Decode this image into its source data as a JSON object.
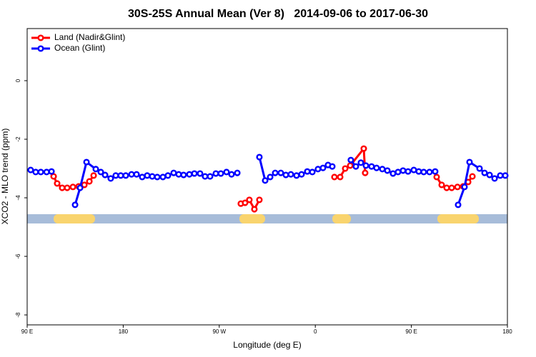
{
  "chart_data": {
    "type": "line",
    "title": "30S-25S Annual Mean (Ver 8)   2014-09-06 to 2017-06-30",
    "x_label": "Longitude (deg E)",
    "y_label": "XCO2 - MLO trend (ppm)",
    "xlim": [
      90,
      540
    ],
    "xticks": [
      {
        "value": 90,
        "label": "90 E"
      },
      180,
      {
        "value": 270,
        "label": "90 W"
      },
      {
        "value": 360,
        "label": "0"
      },
      {
        "value": 450,
        "label": "90 E"
      },
      {
        "value": 540,
        "label": "180"
      }
    ],
    "ylim": [
      -8.34,
      1.78
    ],
    "yticks": [
      0,
      -2,
      -4,
      -6,
      -8
    ],
    "legend": "top-left",
    "series": [
      {
        "name": "Land (Nadir&Glint)",
        "color": "#ff0000",
        "x": [
          114.8,
          118.1,
          122.8,
          127.5,
          132.9,
          138.2,
          143.6,
          148.3,
          152.3,
          null,
          290.2,
          294.2,
          298.2,
          302.9,
          307.6,
          null,
          377.9,
          383.3,
          388,
          392.7,
          405.4,
          406.7,
          null,
          473.7,
          478.4,
          483.1,
          487.8,
          493.2,
          498.5,
          503.2,
          507.2
        ],
        "values": [
          -3.27,
          -3.51,
          -3.66,
          -3.66,
          -3.63,
          -3.61,
          -3.56,
          -3.44,
          -3.24,
          null,
          -4.2,
          -4.17,
          -4.07,
          -4.39,
          -4.07,
          null,
          -3.29,
          -3.29,
          -3.0,
          -2.9,
          -2.32,
          -3.15,
          null,
          -3.29,
          -3.56,
          -3.66,
          -3.66,
          -3.63,
          -3.61,
          -3.46,
          -3.27
        ]
      },
      {
        "name": "Ocean (Glint)",
        "color": "#0000ff",
        "x": [
          93.3,
          98,
          102.8,
          108.2,
          112.8,
          null,
          134.9,
          139.6,
          145.6,
          154.3,
          159,
          163,
          168.3,
          173,
          177.7,
          182.4,
          187.8,
          192.5,
          197.8,
          202.5,
          207.2,
          211.9,
          217.2,
          221.9,
          227.3,
          232,
          236.6,
          242,
          246.7,
          252,
          256.7,
          261.4,
          266.8,
          271.5,
          276.8,
          281.5,
          286.9,
          null,
          307.6,
          313,
          317.7,
          322.4,
          327.7,
          332.4,
          337.1,
          342.4,
          347.1,
          352.5,
          357.2,
          362.5,
          367.2,
          371.9,
          375.9,
          null,
          393.3,
          398,
          402.7,
          407.4,
          412.7,
          417.4,
          422.8,
          427.5,
          432.8,
          437.5,
          442.2,
          446.9,
          452.3,
          456.9,
          461.6,
          467,
          472.3,
          null,
          493.8,
          499.8,
          504.5,
          513.9,
          518.6,
          523.3,
          528,
          533.3,
          538
        ],
        "values": [
          -3.05,
          -3.12,
          -3.12,
          -3.12,
          -3.1,
          null,
          -4.24,
          -3.66,
          -2.78,
          -3.02,
          -3.12,
          -3.22,
          -3.34,
          -3.24,
          -3.24,
          -3.24,
          -3.2,
          -3.2,
          -3.29,
          -3.24,
          -3.27,
          -3.29,
          -3.29,
          -3.24,
          -3.15,
          -3.2,
          -3.22,
          -3.2,
          -3.17,
          -3.17,
          -3.27,
          -3.27,
          -3.17,
          -3.17,
          -3.12,
          -3.2,
          -3.15,
          null,
          -2.61,
          -3.41,
          -3.29,
          -3.15,
          -3.15,
          -3.22,
          -3.2,
          -3.24,
          -3.2,
          -3.1,
          -3.12,
          -3.02,
          -2.98,
          -2.88,
          -2.93,
          null,
          -2.71,
          -2.93,
          -2.8,
          -2.9,
          -2.93,
          -2.98,
          -3.02,
          -3.07,
          -3.17,
          -3.12,
          -3.07,
          -3.1,
          -3.05,
          -3.1,
          -3.12,
          -3.12,
          -3.1,
          null,
          -4.24,
          -3.63,
          -2.78,
          -3.0,
          -3.15,
          -3.22,
          -3.34,
          -3.24,
          -3.24
        ]
      }
    ]
  }
}
